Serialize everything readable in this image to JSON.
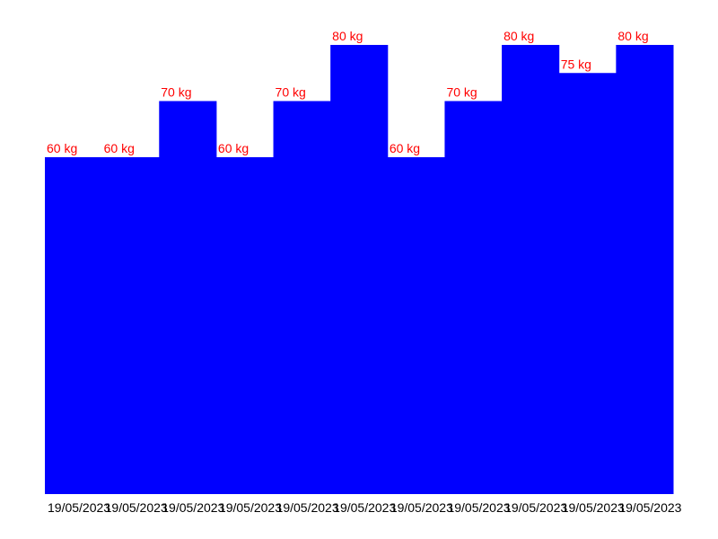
{
  "chart_data": {
    "type": "bar",
    "categories": [
      "19/05/2023",
      "19/05/2023",
      "19/05/2023",
      "19/05/2023",
      "19/05/2023",
      "19/05/2023",
      "19/05/2023",
      "19/05/2023",
      "19/05/2023",
      "19/05/2023",
      "19/05/2023"
    ],
    "values": [
      60,
      60,
      70,
      60,
      70,
      80,
      60,
      70,
      80,
      75,
      80
    ],
    "data_labels": [
      "60 kg",
      "60 kg",
      "70 kg",
      "60 kg",
      "70 kg",
      "80 kg",
      "60 kg",
      "70 kg",
      "80 kg",
      "75 kg",
      "80 kg"
    ],
    "ylim": [
      0,
      80
    ],
    "grid": false,
    "legend": "none",
    "bar_color": "#0000ff",
    "label_color": "#ff0000",
    "tick_color": "#000000"
  }
}
